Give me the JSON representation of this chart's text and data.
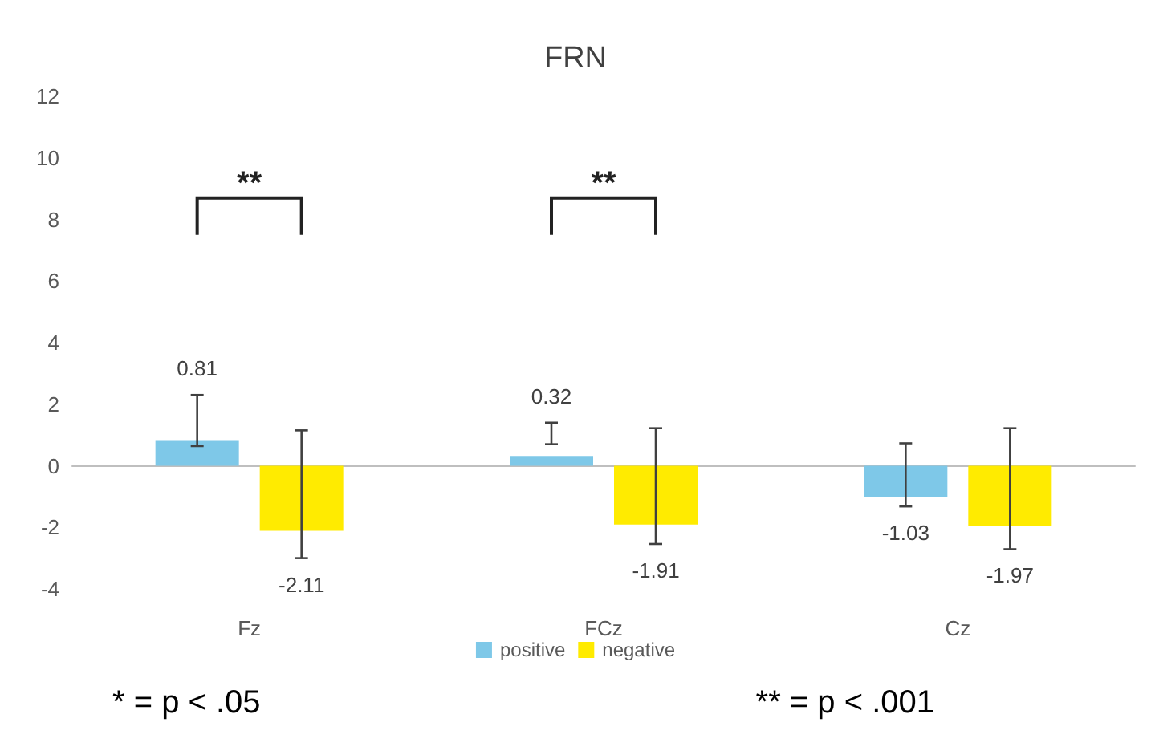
{
  "chart_data": {
    "type": "bar",
    "title": "FRN",
    "categories": [
      "Fz",
      "FCz",
      "Cz"
    ],
    "series": [
      {
        "name": "positive",
        "color": "#7ec8e8",
        "values": [
          0.81,
          0.32,
          -1.03
        ],
        "errors": [
          [
            0.64,
            2.3
          ],
          [
            0.7,
            1.4
          ],
          [
            -1.32,
            0.73
          ]
        ]
      },
      {
        "name": "negative",
        "color": "#ffeb00",
        "values": [
          -2.11,
          -1.91,
          -1.97
        ],
        "errors": [
          [
            -3.0,
            1.15
          ],
          [
            -2.54,
            1.22
          ],
          [
            -2.71,
            1.22
          ]
        ]
      }
    ],
    "ylim": [
      -4,
      12
    ],
    "yticks": [
      -4,
      -2,
      0,
      2,
      4,
      6,
      8,
      10,
      12
    ],
    "legend": "bottom",
    "data_labels": true,
    "annotations": [
      "**",
      "**",
      "* = p < .05",
      "** = p < .001"
    ]
  }
}
